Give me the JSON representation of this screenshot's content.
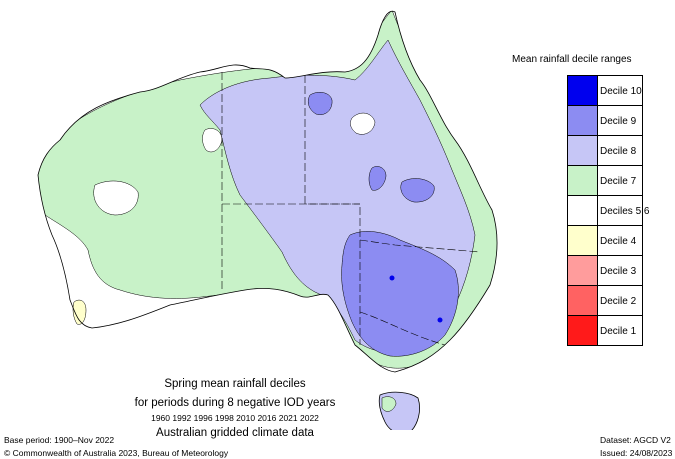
{
  "legend": {
    "title": "Mean rainfall decile ranges",
    "items": [
      {
        "label": "Decile 10",
        "color": "#0000ee"
      },
      {
        "label": "Decile 9",
        "color": "#8c8cf2"
      },
      {
        "label": "Decile 8",
        "color": "#c6c6f6"
      },
      {
        "label": "Decile 7",
        "color": "#c8f2c8"
      },
      {
        "label": "Deciles 5,6",
        "color": "#ffffff"
      },
      {
        "label": "Decile 4",
        "color": "#ffffcc"
      },
      {
        "label": "Decile 3",
        "color": "#ff9c9c"
      },
      {
        "label": "Decile 2",
        "color": "#ff6262"
      },
      {
        "label": "Decile 1",
        "color": "#ff1a1a"
      }
    ]
  },
  "caption": {
    "line1": "Spring mean rainfall deciles",
    "line2": "for periods during 8 negative IOD years",
    "years": "1960 1992 1996 1998 2010 2016 2021 2022",
    "line4": "Australian gridded climate data"
  },
  "footer": {
    "base_period": "Base period: 1900–Nov 2022",
    "copyright": "© Commonwealth of Australia 2023, Bureau of Meteorology",
    "dataset": "Dataset: AGCD V2",
    "issued": "Issued: 24/08/2023"
  }
}
